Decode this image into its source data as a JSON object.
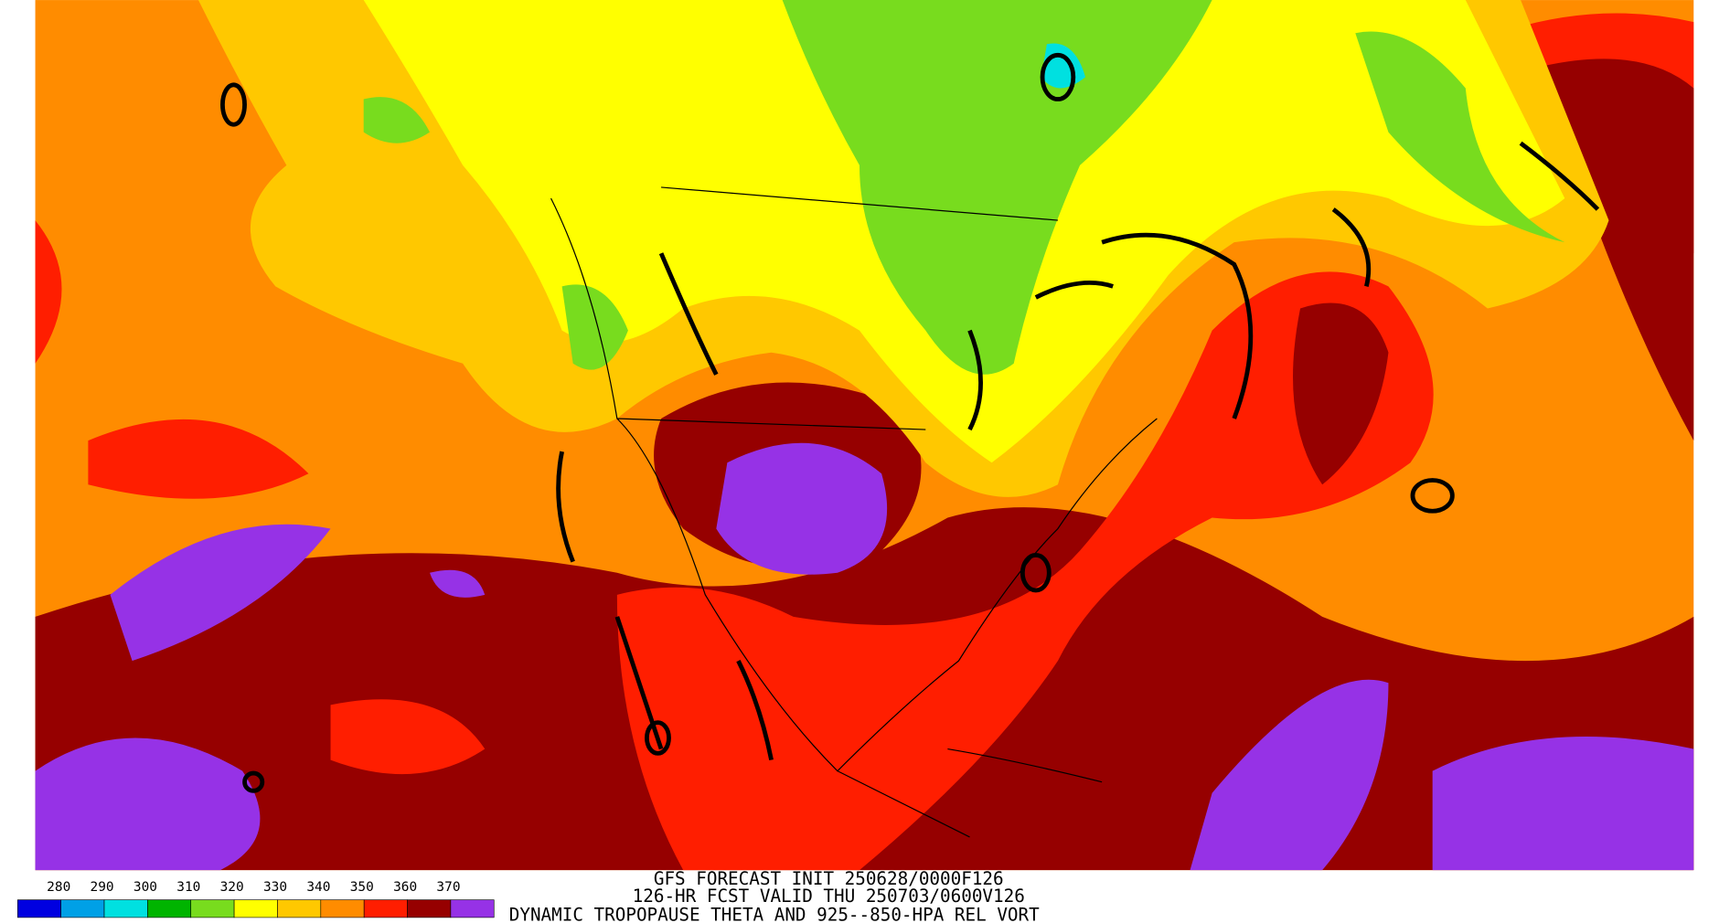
{
  "colorbar": {
    "labels": [
      280,
      290,
      300,
      310,
      320,
      330,
      340,
      350,
      360,
      370
    ],
    "colors": [
      "#0000e0",
      "#00a0e6",
      "#00e0e0",
      "#00b400",
      "#78dc1e",
      "#ffff00",
      "#ffc800",
      "#ff8c00",
      "#ff1e00",
      "#960000",
      "#9632e6"
    ]
  },
  "title": {
    "lines": [
      "GFS FORECAST INIT 250628/0000F126",
      "126-HR FCST VALID THU 250703/0600V126",
      "DYNAMIC TROPOPAUSE THETA AND 925--850-HPA REL VORT"
    ]
  }
}
